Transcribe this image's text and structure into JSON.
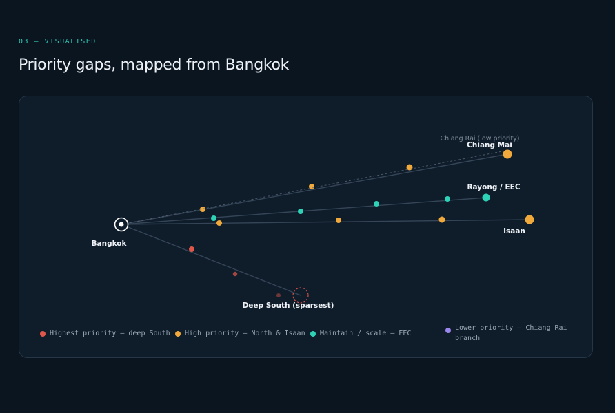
{
  "header": {
    "eyebrow": "03 — VISUALISED",
    "title": "Priority gaps, mapped from Bangkok"
  },
  "colors": {
    "highest": "#e0574a",
    "high": "#f0a93a",
    "maintain": "#2ed3b7",
    "lower": "#9b86ee",
    "origin": "#ffffff",
    "route": "#3a4a5c"
  },
  "map": {
    "origin": {
      "label": "Bangkok"
    },
    "routes": [
      {
        "id": "chiang-mai",
        "label": "Chiang Mai",
        "priority": "high",
        "dashed": false
      },
      {
        "id": "chiang-rai",
        "label": "Chiang Rai (low priority)",
        "priority": "lower",
        "dashed": true
      },
      {
        "id": "rayong",
        "label": "Rayong / EEC",
        "priority": "maintain",
        "dashed": false
      },
      {
        "id": "isaan",
        "label": "Isaan",
        "priority": "high",
        "dashed": false
      },
      {
        "id": "deep-south",
        "label": "Deep South (sparsest)",
        "priority": "highest",
        "dashed": false
      }
    ]
  },
  "legend": [
    {
      "key": "highest",
      "label": "Highest priority — deep South"
    },
    {
      "key": "high",
      "label": "High priority — North & Isaan"
    },
    {
      "key": "maintain",
      "label": "Maintain / scale — EEC"
    },
    {
      "key": "lower",
      "label": "Lower priority — Chiang Rai branch"
    }
  ]
}
